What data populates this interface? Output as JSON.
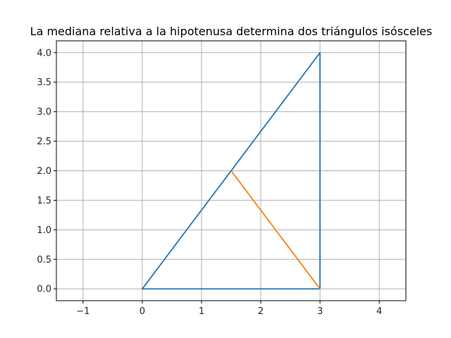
{
  "chart_data": {
    "type": "line",
    "title": "La mediana relativa a la hipotenusa determina dos triángulos isósceles",
    "xlabel": "",
    "ylabel": "",
    "xlim": [
      -1.45,
      4.45
    ],
    "ylim": [
      -0.2,
      4.2
    ],
    "x_ticks": [
      {
        "value": -1,
        "label": "−1"
      },
      {
        "value": 0,
        "label": "0"
      },
      {
        "value": 1,
        "label": "1"
      },
      {
        "value": 2,
        "label": "2"
      },
      {
        "value": 3,
        "label": "3"
      },
      {
        "value": 4,
        "label": "4"
      }
    ],
    "y_ticks": [
      {
        "value": 0,
        "label": "0.0"
      },
      {
        "value": 0.5,
        "label": "0.5"
      },
      {
        "value": 1,
        "label": "1.0"
      },
      {
        "value": 1.5,
        "label": "1.5"
      },
      {
        "value": 2,
        "label": "2.0"
      },
      {
        "value": 2.5,
        "label": "2.5"
      },
      {
        "value": 3,
        "label": "3.0"
      },
      {
        "value": 3.5,
        "label": "3.5"
      },
      {
        "value": 4,
        "label": "4.0"
      }
    ],
    "grid": true,
    "legend": "none",
    "series": [
      {
        "color": "#1f77b4",
        "x": [
          0,
          3,
          3,
          0
        ],
        "y": [
          0,
          0,
          4,
          0
        ]
      },
      {
        "color": "#ff7f0e",
        "x": [
          1.5,
          3
        ],
        "y": [
          2,
          0
        ]
      }
    ]
  }
}
